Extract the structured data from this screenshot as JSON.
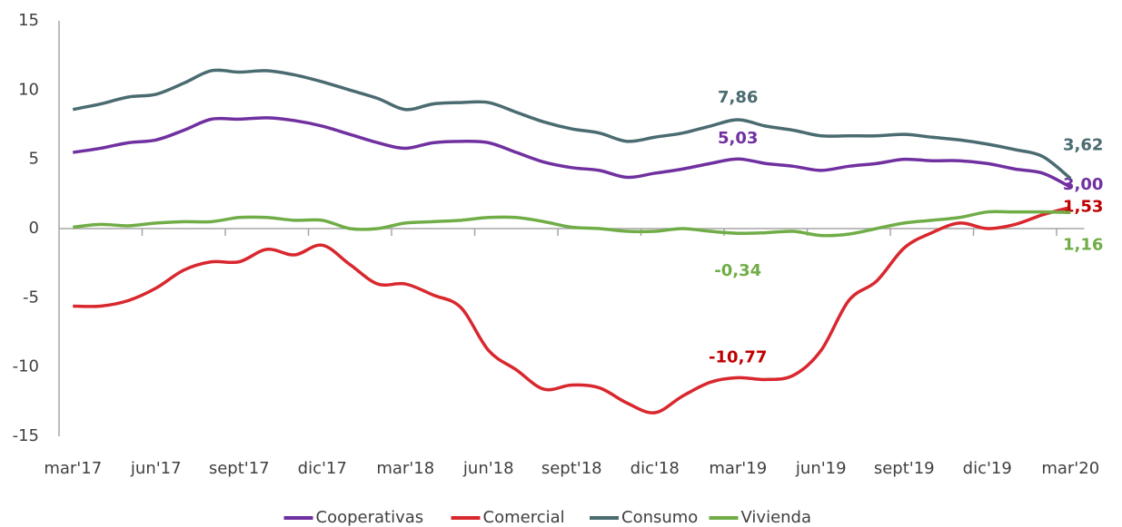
{
  "chart_data": {
    "type": "line",
    "categories": [
      "mar'17",
      null,
      null,
      "jun'17",
      null,
      null,
      "sept'17",
      null,
      null,
      "dic'17",
      null,
      null,
      "mar'18",
      null,
      null,
      "jun'18",
      null,
      null,
      "sept'18",
      null,
      null,
      "dic'18",
      null,
      null,
      "mar'19",
      null,
      null,
      "jun'19",
      null,
      null,
      "sept'19",
      null,
      null,
      "dic'19",
      null,
      null,
      "mar'20"
    ],
    "ylim": [
      -15,
      15
    ],
    "yticks": [
      -15,
      -10,
      -5,
      0,
      5,
      10,
      15
    ],
    "grid": false,
    "legend": "bottom",
    "series": [
      {
        "name": "Cooperativas",
        "color": "#7030a0",
        "values": [
          5.5,
          5.8,
          6.2,
          6.4,
          7.1,
          7.9,
          7.9,
          8.0,
          7.8,
          7.4,
          6.8,
          6.2,
          5.8,
          6.2,
          6.3,
          6.2,
          5.5,
          4.8,
          4.4,
          4.2,
          3.7,
          4.0,
          4.3,
          4.7,
          5.03,
          4.7,
          4.5,
          4.2,
          4.5,
          4.7,
          5.0,
          4.9,
          4.9,
          4.7,
          4.3,
          4.0,
          3.0
        ],
        "value_labels": [
          null,
          null,
          null,
          null,
          null,
          null,
          null,
          null,
          null,
          null,
          null,
          null,
          null,
          null,
          null,
          null,
          null,
          null,
          null,
          null,
          null,
          null,
          null,
          null,
          "5,03",
          null,
          null,
          null,
          null,
          null,
          null,
          null,
          null,
          null,
          null,
          null,
          "3,00"
        ]
      },
      {
        "name": "Comercial",
        "color": "#d9272e",
        "values": [
          -5.6,
          -5.6,
          -5.2,
          -4.3,
          -3.0,
          -2.4,
          -2.4,
          -1.5,
          -1.9,
          -1.2,
          -2.6,
          -4.0,
          -4.0,
          -4.8,
          -5.7,
          -8.8,
          -10.2,
          -11.6,
          -11.3,
          -11.5,
          -12.6,
          -13.3,
          -12.1,
          -11.1,
          -10.77,
          -10.9,
          -10.6,
          -8.8,
          -5.2,
          -3.8,
          -1.4,
          -0.3,
          0.4,
          0.0,
          0.3,
          1.0,
          1.53
        ],
        "value_labels": [
          null,
          null,
          null,
          null,
          null,
          null,
          null,
          null,
          null,
          null,
          null,
          null,
          null,
          null,
          null,
          null,
          null,
          null,
          null,
          null,
          null,
          null,
          null,
          null,
          "-10,77",
          null,
          null,
          null,
          null,
          null,
          null,
          null,
          null,
          null,
          null,
          null,
          "1,53"
        ]
      },
      {
        "name": "Consumo",
        "color": "#4a6b70",
        "values": [
          8.6,
          9.0,
          9.5,
          9.7,
          10.5,
          11.4,
          11.3,
          11.4,
          11.1,
          10.6,
          10.0,
          9.4,
          8.6,
          9.0,
          9.1,
          9.1,
          8.4,
          7.7,
          7.2,
          6.9,
          6.3,
          6.6,
          6.9,
          7.4,
          7.86,
          7.4,
          7.1,
          6.7,
          6.7,
          6.7,
          6.8,
          6.6,
          6.4,
          6.1,
          5.7,
          5.2,
          3.62
        ],
        "value_labels": [
          null,
          null,
          null,
          null,
          null,
          null,
          null,
          null,
          null,
          null,
          null,
          null,
          null,
          null,
          null,
          null,
          null,
          null,
          null,
          null,
          null,
          null,
          null,
          null,
          "7,86",
          null,
          null,
          null,
          null,
          null,
          null,
          null,
          null,
          null,
          null,
          null,
          "3,62"
        ]
      },
      {
        "name": "Vivienda",
        "color": "#70ad47",
        "values": [
          0.1,
          0.3,
          0.2,
          0.4,
          0.5,
          0.5,
          0.8,
          0.8,
          0.6,
          0.6,
          0.0,
          0.0,
          0.4,
          0.5,
          0.6,
          0.8,
          0.8,
          0.5,
          0.1,
          0.0,
          -0.2,
          -0.2,
          0.0,
          -0.2,
          -0.34,
          -0.3,
          -0.2,
          -0.5,
          -0.4,
          0.0,
          0.4,
          0.6,
          0.8,
          1.2,
          1.2,
          1.2,
          1.16
        ],
        "value_labels": [
          null,
          null,
          null,
          null,
          null,
          null,
          null,
          null,
          null,
          null,
          null,
          null,
          null,
          null,
          null,
          null,
          null,
          null,
          null,
          null,
          null,
          null,
          null,
          null,
          "-0,34",
          null,
          null,
          null,
          null,
          null,
          null,
          null,
          null,
          null,
          null,
          null,
          "1,16"
        ]
      }
    ]
  }
}
